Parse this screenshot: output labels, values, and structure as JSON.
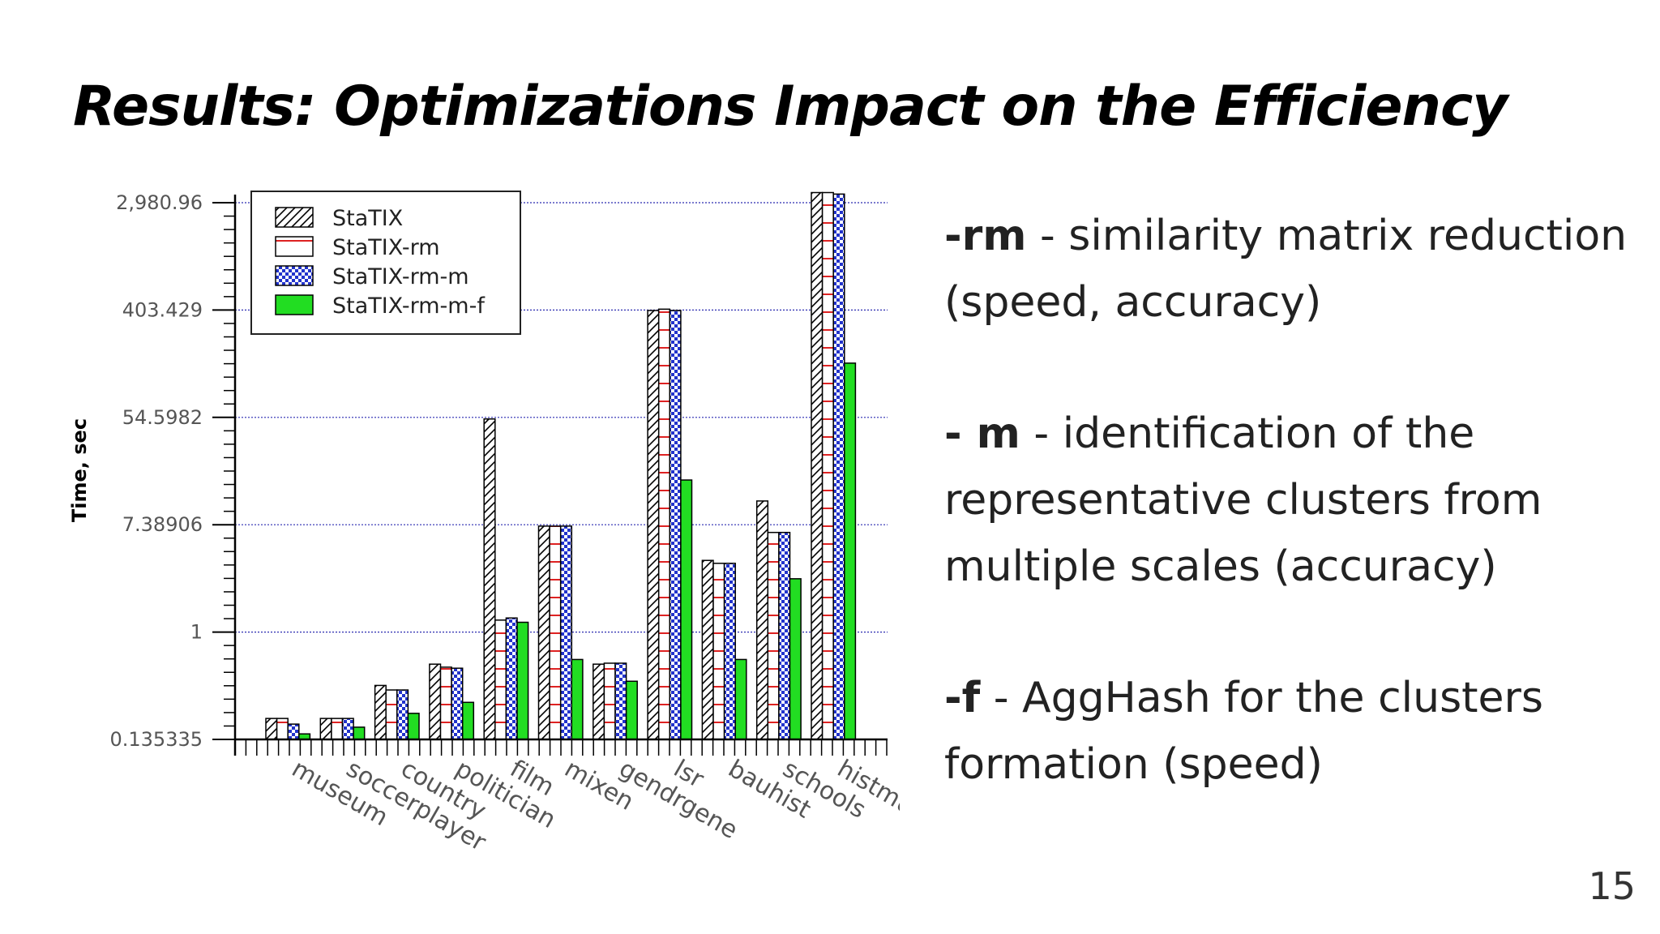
{
  "slide": {
    "title": "Results: Optimizations Impact on the Efficiency",
    "page_number": "15"
  },
  "notes": [
    {
      "key": "-rm",
      "text": " - similarity matrix reduction (speed, accuracy)"
    },
    {
      "key": "- m",
      "text": " - identification of the representative clusters from multiple scales (accuracy)"
    },
    {
      "key": "-f",
      "text": " - AggHash for the clusters formation (speed)"
    }
  ],
  "chart_data": {
    "type": "bar",
    "title": "",
    "xlabel": "",
    "ylabel": "Time, sec",
    "yscale": "log",
    "ylim": [
      0.135335,
      2980.96
    ],
    "y_ticks": [
      {
        "value": 0.135335,
        "label": "0.135335"
      },
      {
        "value": 1,
        "label": "1"
      },
      {
        "value": 7.38906,
        "label": "7.38906"
      },
      {
        "value": 54.5982,
        "label": "54.5982"
      },
      {
        "value": 403.429,
        "label": "403.429"
      },
      {
        "value": 2980.96,
        "label": "2,980.96"
      }
    ],
    "grid": "horizontal dotted at major ticks",
    "legend_position": "top-left",
    "categories": [
      "museum",
      "soccerplayer",
      "country",
      "politician",
      "film",
      "mixen",
      "gendrgene",
      "lsr",
      "bauhist",
      "schools",
      "histmu"
    ],
    "series": [
      {
        "name": "StaTIX",
        "pattern": "hatch",
        "color": "#000000",
        "values": [
          0.2,
          0.2,
          0.37,
          0.55,
          53,
          7.2,
          0.55,
          400,
          3.8,
          11.5,
          3600
        ]
      },
      {
        "name": "StaTIX-rm",
        "pattern": "red-lines",
        "color": "#cc2222",
        "values": [
          0.2,
          0.2,
          0.34,
          0.52,
          1.25,
          7.2,
          0.56,
          410,
          3.6,
          6.4,
          3600
        ]
      },
      {
        "name": "StaTIX-rm-m",
        "pattern": "checker",
        "color": "#2233cc",
        "values": [
          0.18,
          0.2,
          0.34,
          0.51,
          1.3,
          7.2,
          0.56,
          400,
          3.6,
          6.4,
          3500
        ]
      },
      {
        "name": "StaTIX-rm-m-f",
        "pattern": "solid",
        "color": "#22dd22",
        "values": [
          0.15,
          0.17,
          0.22,
          0.27,
          1.2,
          0.6,
          0.4,
          17,
          0.6,
          2.7,
          150
        ]
      }
    ]
  }
}
